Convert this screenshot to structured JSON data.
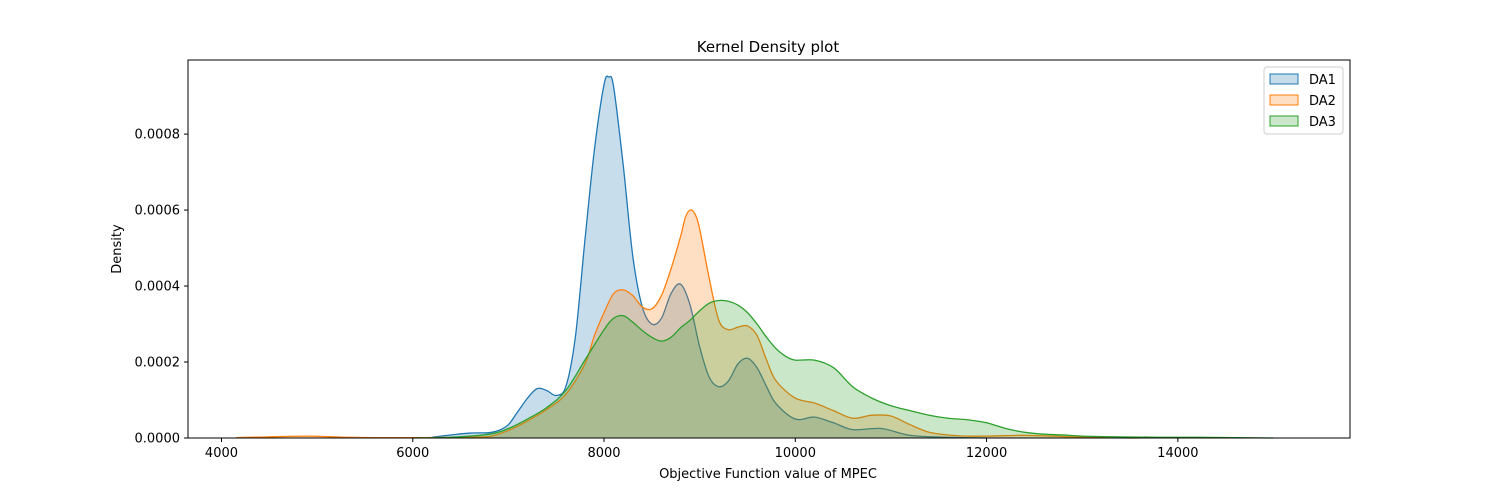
{
  "chart_data": {
    "type": "area",
    "title": "Kernel Density plot",
    "xlabel": "Objective Function value of MPEC",
    "ylabel": "Density",
    "xlim": [
      3650,
      15800
    ],
    "ylim": [
      0,
      0.000995
    ],
    "xticks": [
      4000,
      6000,
      8000,
      10000,
      12000,
      14000
    ],
    "xtick_labels": [
      "4000",
      "6000",
      "8000",
      "10000",
      "12000",
      "14000"
    ],
    "yticks": [
      0,
      0.0002,
      0.0004,
      0.0006,
      0.0008
    ],
    "ytick_labels": [
      "0.0000",
      "0.0002",
      "0.0004",
      "0.0006",
      "0.0008"
    ],
    "grid": false,
    "legend_position": "top-right",
    "series": [
      {
        "name": "DA1",
        "color": "#1f77b4",
        "x": [
          6200,
          6400,
          6600,
          6800,
          6900,
          7000,
          7100,
          7200,
          7300,
          7400,
          7500,
          7600,
          7700,
          7800,
          7900,
          8000,
          8050,
          8100,
          8200,
          8300,
          8400,
          8500,
          8600,
          8700,
          8800,
          8900,
          9000,
          9100,
          9200,
          9300,
          9400,
          9500,
          9600,
          9700,
          9800,
          10000,
          10200,
          10400,
          10600,
          10900,
          11200,
          11600,
          12000
        ],
        "y": [
          2e-06,
          8e-06,
          1.3e-05,
          1.4e-05,
          2e-05,
          3.5e-05,
          7e-05,
          0.000105,
          0.00013,
          0.000125,
          0.000112,
          0.000135,
          0.000265,
          0.00052,
          0.00076,
          0.00093,
          0.00095,
          0.000925,
          0.00072,
          0.00048,
          0.000345,
          0.0003,
          0.000315,
          0.00038,
          0.000405,
          0.00035,
          0.00024,
          0.00016,
          0.000135,
          0.00015,
          0.000195,
          0.00021,
          0.000185,
          0.000135,
          9e-05,
          5e-05,
          5.5e-05,
          4e-05,
          2.2e-05,
          2.5e-05,
          7e-06,
          2e-06,
          0
        ]
      },
      {
        "name": "DA2",
        "color": "#ff7f0e",
        "x": [
          4150,
          4500,
          4900,
          5300,
          5700,
          6100,
          6500,
          6800,
          7000,
          7200,
          7400,
          7600,
          7800,
          7900,
          8000,
          8100,
          8200,
          8300,
          8400,
          8500,
          8600,
          8700,
          8800,
          8850,
          8900,
          8950,
          9000,
          9100,
          9200,
          9300,
          9400,
          9500,
          9600,
          9700,
          9800,
          10000,
          10200,
          10400,
          10600,
          10800,
          11000,
          11200,
          11400,
          11600,
          11800,
          12000,
          12400,
          12800,
          13200,
          13600
        ],
        "y": [
          1e-06,
          3e-06,
          5e-06,
          2e-06,
          1e-06,
          1e-06,
          2e-06,
          4e-06,
          2e-05,
          4.5e-05,
          7.5e-05,
          0.000115,
          0.000195,
          0.00027,
          0.00033,
          0.00038,
          0.00039,
          0.000375,
          0.000345,
          0.00034,
          0.000375,
          0.000445,
          0.00053,
          0.00058,
          0.0006,
          0.00059,
          0.00055,
          0.00042,
          0.00031,
          0.000285,
          0.000292,
          0.000295,
          0.00027,
          0.000205,
          0.00015,
          0.000105,
          9.2e-05,
          7.2e-05,
          5.2e-05,
          6e-05,
          5.8e-05,
          3.5e-05,
          1.5e-05,
          8e-06,
          5e-06,
          5e-06,
          7e-06,
          4e-06,
          1e-06,
          0
        ]
      },
      {
        "name": "DA3",
        "color": "#2ca02c",
        "x": [
          6000,
          6400,
          6800,
          7000,
          7200,
          7400,
          7600,
          7800,
          8000,
          8100,
          8200,
          8300,
          8400,
          8500,
          8600,
          8700,
          8800,
          8900,
          9000,
          9100,
          9200,
          9300,
          9400,
          9500,
          9600,
          9700,
          9800,
          9900,
          10000,
          10200,
          10400,
          10600,
          10800,
          11000,
          11200,
          11400,
          11600,
          11800,
          12000,
          12200,
          12400,
          12600,
          12800,
          13000,
          13400,
          13800,
          14200,
          14600,
          15000
        ],
        "y": [
          0,
          2e-06,
          1e-05,
          2.5e-05,
          5e-05,
          8e-05,
          0.000125,
          0.000205,
          0.000285,
          0.000315,
          0.000322,
          0.000305,
          0.000283,
          0.000265,
          0.000255,
          0.000265,
          0.00029,
          0.00031,
          0.000335,
          0.000355,
          0.000362,
          0.00036,
          0.00035,
          0.00033,
          0.0003,
          0.000265,
          0.000235,
          0.000215,
          0.000205,
          0.000205,
          0.000185,
          0.000135,
          0.000105,
          8.5e-05,
          7.2e-05,
          6e-05,
          5.2e-05,
          4.8e-05,
          4e-05,
          2.5e-05,
          1.5e-05,
          1e-05,
          8e-06,
          5e-06,
          3e-06,
          2e-06,
          2e-06,
          1e-06,
          0
        ]
      }
    ]
  }
}
